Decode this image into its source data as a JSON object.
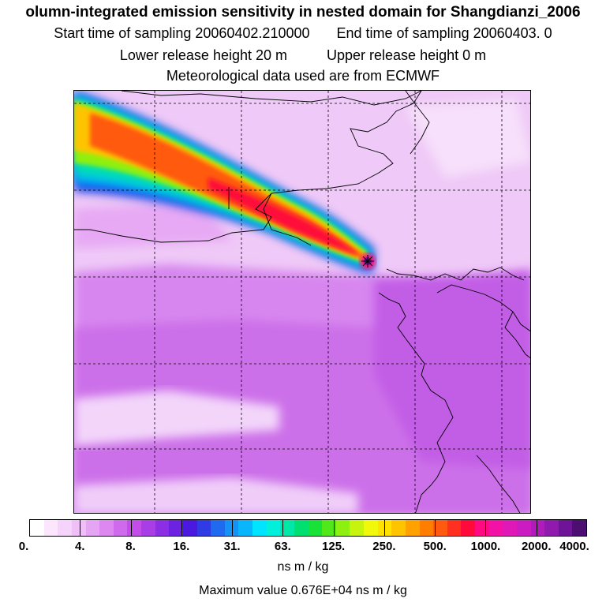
{
  "header": {
    "title": "olumn-integrated emission sensitivity in nested domain for Shangdianzi_2006",
    "start_label": "Start time of sampling 20060402.210000",
    "end_label": "End time of sampling 20060403.     0",
    "lower_label": "Lower release height   20 m",
    "upper_label": "Upper release height    0 m",
    "met_label": "Meteorological data used are from ECMWF"
  },
  "legend": {
    "tick_labels": [
      "0.",
      "4.",
      "8.",
      "16.",
      "31.",
      "63.",
      "125.",
      "250.",
      "500.",
      "1000.",
      "2000.",
      "4000."
    ],
    "colors": [
      "#ffffff",
      "#fbe6fd",
      "#f5d3fb",
      "#efc0f8",
      "#e6a4f4",
      "#dd88f0",
      "#d06aed",
      "#c44ce9",
      "#a93ee6",
      "#8c2fe4",
      "#6d22e2",
      "#4b18e0",
      "#2f3ce6",
      "#1f6aee",
      "#1492f5",
      "#0ab6fb",
      "#00e4ff",
      "#00f0dc",
      "#00e8a8",
      "#00e070",
      "#18e238",
      "#50e818",
      "#8ef010",
      "#c6f40c",
      "#f2f80a",
      "#ffe200",
      "#ffc400",
      "#ffa200",
      "#ff7e00",
      "#ff5a10",
      "#ff3020",
      "#ff0a3a",
      "#ff0a80",
      "#f212a6",
      "#e018b8",
      "#ca1cc0",
      "#b01cbc",
      "#901aae",
      "#6e1496",
      "#4c0e70"
    ],
    "unit": "ns m / kg",
    "max_value": "Maximum value  0.676E+04 ns m / kg"
  },
  "map": {
    "background_color": "#efc9f7"
  }
}
